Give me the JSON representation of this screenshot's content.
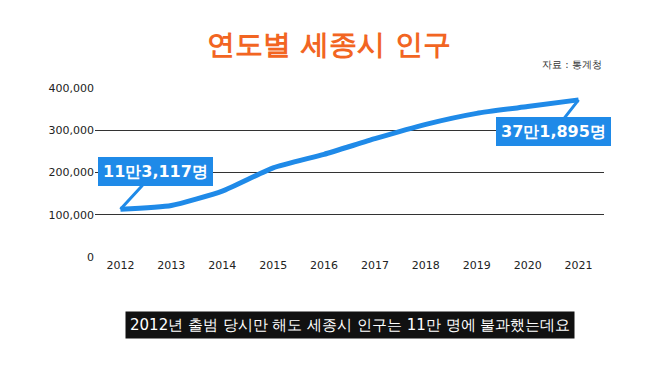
{
  "chart_data": {
    "type": "line",
    "title": "연도별 세종시 인구",
    "source": "자료 : 통계청",
    "caption": "2012년 출범 당시만 해도 세종시 인구는 11만 명에 불과했는데요",
    "categories": [
      "2012",
      "2013",
      "2014",
      "2015",
      "2016",
      "2017",
      "2018",
      "2019",
      "2020",
      "2021"
    ],
    "values": [
      113117,
      122000,
      156000,
      211000,
      243000,
      280000,
      314000,
      340000,
      356000,
      371895
    ],
    "color": "#1f8ae8",
    "ylim": [
      0,
      400000
    ],
    "yticks": [
      0,
      {
        "value": 100000,
        "label": "100,000"
      },
      {
        "value": 200000,
        "label": "200,000"
      },
      {
        "value": 300000,
        "label": "300,000"
      },
      {
        "value": 400000,
        "label": "400,000"
      }
    ],
    "grid": true,
    "annotations": [
      {
        "x": "2012",
        "text": "11만3,117명"
      },
      {
        "x": "2021",
        "text": "37만1,895명"
      }
    ]
  }
}
